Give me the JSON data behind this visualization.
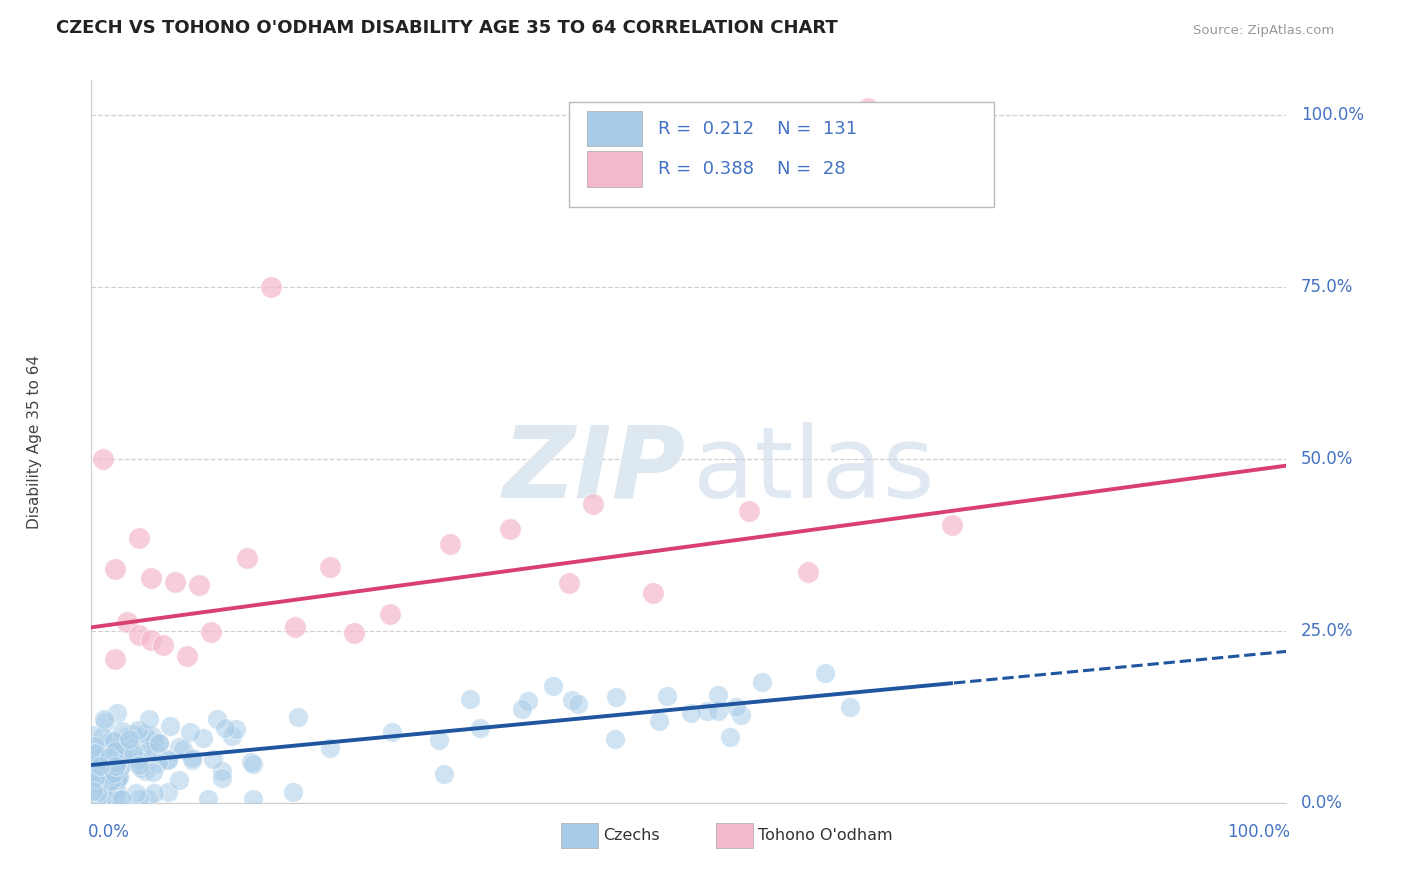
{
  "title": "CZECH VS TOHONO O'ODHAM DISABILITY AGE 35 TO 64 CORRELATION CHART",
  "source": "Source: ZipAtlas.com",
  "ylabel": "Disability Age 35 to 64",
  "legend_label_1": "Czechs",
  "legend_label_2": "Tohono O'odham",
  "R1": 0.212,
  "N1": 131,
  "R2": 0.388,
  "N2": 28,
  "blue_color": "#a8cce8",
  "pink_color": "#f4b8cb",
  "blue_line_color": "#2055a0",
  "pink_line_color": "#d94070",
  "axis_label_color": "#4472c4",
  "title_color": "#222222",
  "source_color": "#999999",
  "watermark_zip_color": "#dde8f0",
  "watermark_atlas_color": "#c8d8e8",
  "ytick_labels": [
    "0.0%",
    "25.0%",
    "50.0%",
    "75.0%",
    "100.0%"
  ],
  "ytick_values": [
    0.0,
    0.25,
    0.5,
    0.75,
    1.0
  ],
  "blue_trend_intercept": 0.055,
  "blue_trend_slope": 0.165,
  "pink_trend_intercept": 0.255,
  "pink_trend_slope": 0.235
}
